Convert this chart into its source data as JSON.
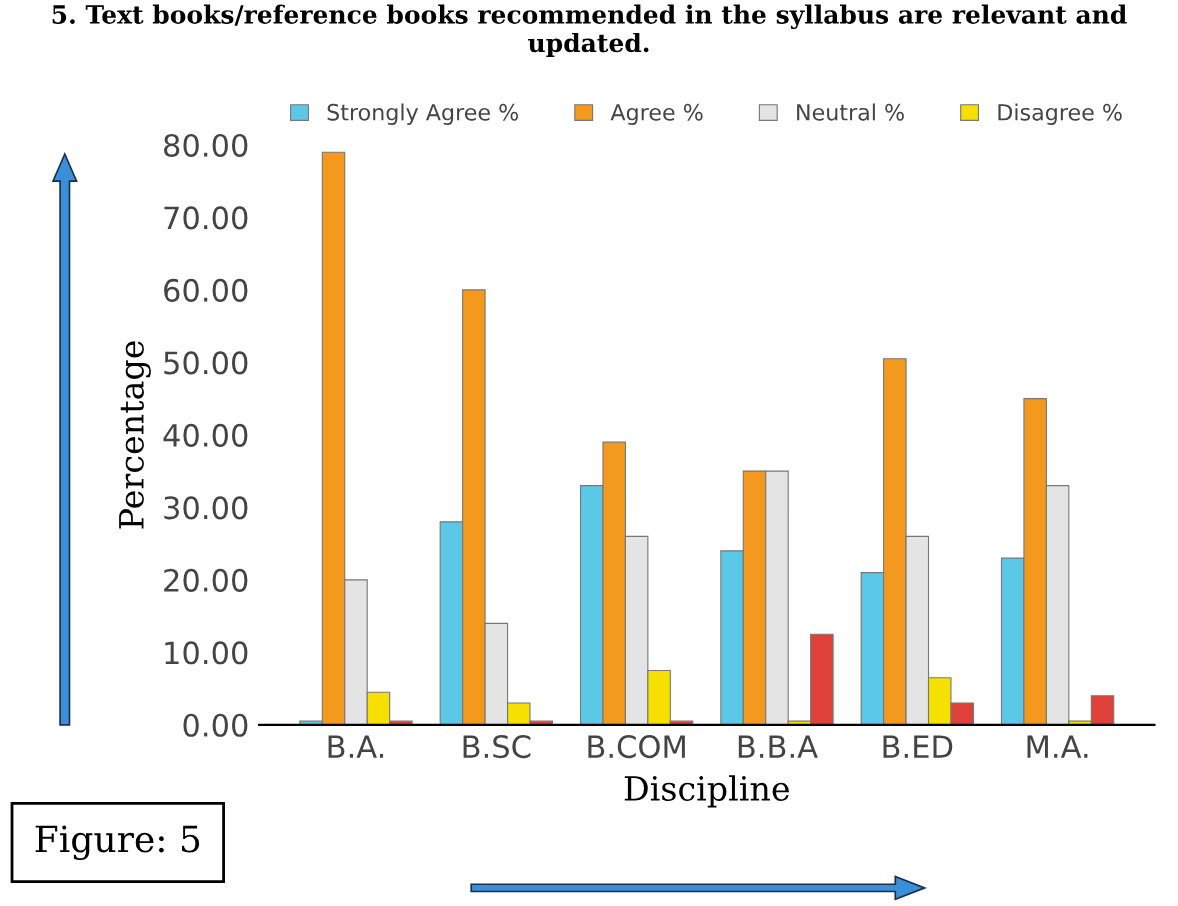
{
  "chart_data": {
    "type": "bar",
    "title": "5. Text books/reference books recommended in the syllabus are relevant and updated.",
    "xlabel": "Discipline",
    "ylabel": "Percentage",
    "categories": [
      "B.A.",
      "B.SC",
      "B.COM",
      "B.B.A",
      "B.ED",
      "M.A."
    ],
    "series": [
      {
        "name": "Strongly Agree %",
        "color": "#5bc8e8",
        "values": [
          0.5,
          28,
          33,
          24,
          21,
          23
        ]
      },
      {
        "name": "Agree %",
        "color": "#f39a1e",
        "values": [
          79,
          60,
          39,
          35,
          50.5,
          45
        ]
      },
      {
        "name": "Neutral %",
        "color": "#e4e4e4",
        "values": [
          20,
          14,
          26,
          35,
          26,
          33
        ]
      },
      {
        "name": "Disagree %",
        "color": "#f5e000",
        "values": [
          4.5,
          3,
          7.5,
          0.5,
          6.5,
          0.5
        ]
      },
      {
        "color": "#e0403a",
        "values": [
          0.5,
          0.5,
          0.5,
          12.5,
          3,
          4
        ]
      }
    ],
    "ylim": [
      0,
      80
    ],
    "yticks": [
      {
        "value": 0,
        "label": "0.00"
      },
      {
        "value": 10,
        "label": "10.00"
      },
      {
        "value": 20,
        "label": "20.00"
      },
      {
        "value": 30,
        "label": "30.00"
      },
      {
        "value": 40,
        "label": "40.00"
      },
      {
        "value": 50,
        "label": "50.00"
      },
      {
        "value": 60,
        "label": "60.00"
      },
      {
        "value": 70,
        "label": "70.00"
      },
      {
        "value": 80,
        "label": "80.00"
      }
    ],
    "grid": false,
    "legend": "top",
    "annotations": [
      "Figure: 5"
    ]
  }
}
